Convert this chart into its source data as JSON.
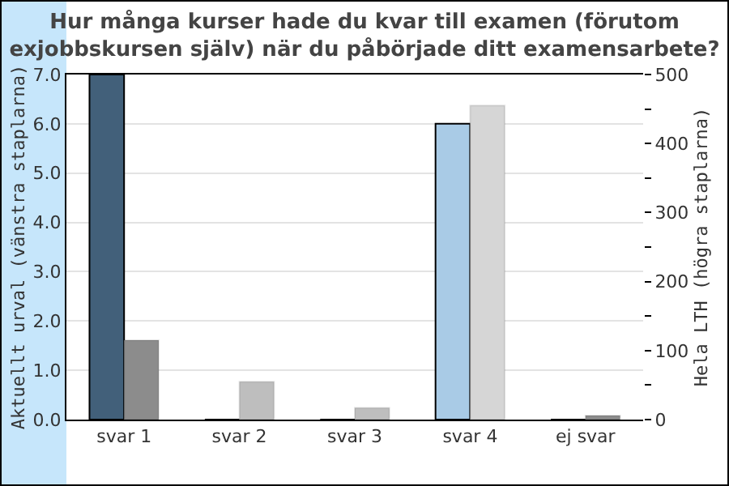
{
  "chart_data": {
    "type": "bar",
    "title": "Hur många kurser hade du kvar till examen (förutom\nexjobbskursen själv) när du påbörjade ditt examensarbete?",
    "categories": [
      "svar 1",
      "svar 2",
      "svar 3",
      "svar 4",
      "ej svar"
    ],
    "series": [
      {
        "colors": [
          "#42607a",
          "#42607a",
          "#42607a",
          "#a9cbe6",
          "#42607a"
        ],
        "values": [
          7,
          0,
          0,
          6,
          0
        ]
      },
      {
        "axis": "y2",
        "colors": [
          "#8c8c8c",
          "#bebebe",
          "#bebebe",
          "#d6d6d6",
          "#8c8c8c"
        ],
        "values": [
          115,
          55,
          17,
          455,
          6
        ]
      }
    ],
    "ylabel": "Aktuellt urval (vänstra staplarna)",
    "y2label": "Hela LTH (högra staplarna)",
    "ylim": [
      0,
      7
    ],
    "yticks": [
      {
        "value": 0,
        "label": "0.0"
      },
      {
        "value": 1,
        "label": "1.0"
      },
      {
        "value": 2,
        "label": "2.0"
      },
      {
        "value": 3,
        "label": "3.0"
      },
      {
        "value": 4,
        "label": "4.0"
      },
      {
        "value": 5,
        "label": "5.0"
      },
      {
        "value": 6,
        "label": "6.0"
      },
      {
        "value": 7,
        "label": "7.0"
      }
    ],
    "y2lim": [
      0,
      500
    ],
    "y2ticks": [
      0,
      {
        "value": 50,
        "label": null
      },
      100,
      {
        "value": 150,
        "label": null
      },
      200,
      {
        "value": 250,
        "label": null
      },
      300,
      {
        "value": 350,
        "label": null
      },
      400,
      {
        "value": 450,
        "label": null
      },
      500
    ],
    "grid": "y"
  }
}
